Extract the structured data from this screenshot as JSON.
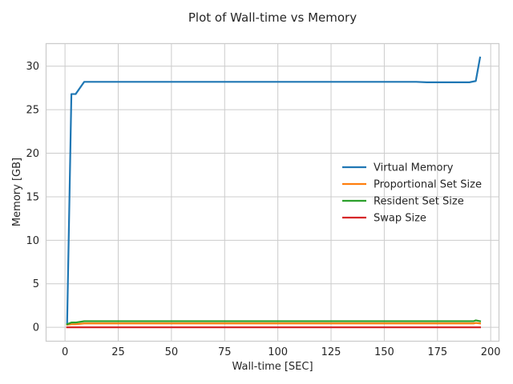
{
  "chart_data": {
    "type": "line",
    "title": "Plot of Wall-time vs Memory",
    "xlabel": "Wall-time [SEC]",
    "ylabel": "Memory [GB]",
    "xlim": [
      -8.7,
      203.7
    ],
    "ylim": [
      -1.55,
      32.55
    ],
    "xticks": [
      0,
      25,
      50,
      75,
      100,
      125,
      150,
      175,
      200
    ],
    "yticks": [
      0,
      5,
      10,
      15,
      20,
      25,
      30
    ],
    "grid": true,
    "legend_position": "center-right",
    "series": [
      {
        "name": "Virtual Memory",
        "color": "#1f77b4",
        "x": [
          1,
          3,
          5,
          9,
          165,
          170,
          190,
          193,
          195
        ],
        "y": [
          0.5,
          26.8,
          26.8,
          28.2,
          28.2,
          28.15,
          28.15,
          28.3,
          31.0
        ]
      },
      {
        "name": "Proportional Set Size",
        "color": "#ff7f0e",
        "x": [
          1,
          3,
          5,
          9,
          192,
          193,
          195
        ],
        "y": [
          0.3,
          0.35,
          0.35,
          0.45,
          0.45,
          0.5,
          0.45
        ]
      },
      {
        "name": "Resident Set Size",
        "color": "#2ca02c",
        "x": [
          1,
          3,
          5,
          9,
          192,
          193,
          195
        ],
        "y": [
          0.35,
          0.55,
          0.55,
          0.7,
          0.7,
          0.8,
          0.7
        ]
      },
      {
        "name": "Swap Size",
        "color": "#d62728",
        "x": [
          1,
          195
        ],
        "y": [
          0.0,
          0.0
        ]
      }
    ]
  }
}
